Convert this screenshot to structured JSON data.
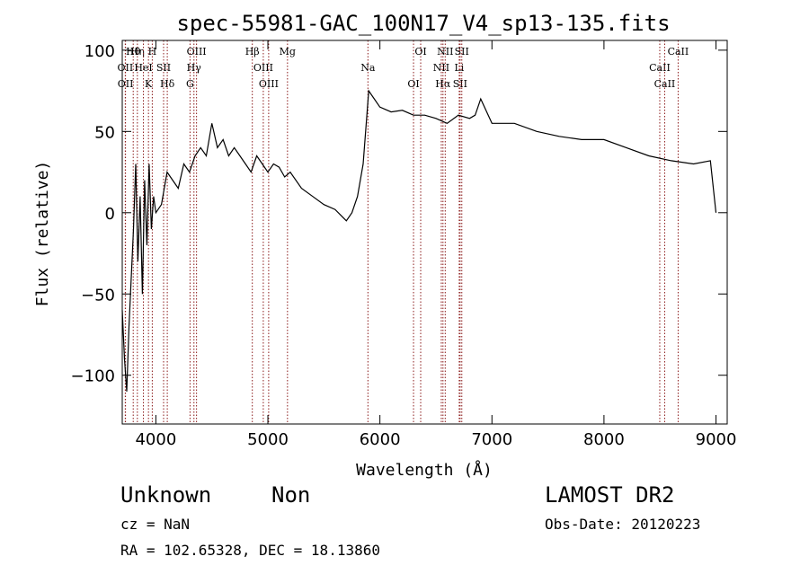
{
  "chart_data": {
    "type": "line",
    "title": "spec-55981-GAC_100N17_V4_sp13-135.fits",
    "xlabel": "Wavelength (Å)",
    "ylabel": "Flux (relative)",
    "xlim": [
      3700,
      9100
    ],
    "ylim": [
      -130,
      106
    ],
    "x_ticks": [
      4000,
      5000,
      6000,
      7000,
      8000,
      9000
    ],
    "y_ticks": [
      -100,
      -50,
      0,
      50,
      100
    ],
    "grid": false,
    "series": [
      {
        "x": [
          3700,
          3720,
          3740,
          3760,
          3780,
          3800,
          3820,
          3840,
          3860,
          3880,
          3900,
          3920,
          3940,
          3960,
          3980,
          4000,
          4050,
          4100,
          4150,
          4200,
          4250,
          4300,
          4350,
          4400,
          4450,
          4500,
          4550,
          4600,
          4650,
          4700,
          4750,
          4800,
          4850,
          4900,
          4950,
          5000,
          5050,
          5100,
          5150,
          5200,
          5300,
          5400,
          5500,
          5600,
          5700,
          5750,
          5800,
          5850,
          5900,
          5950,
          6000,
          6100,
          6200,
          6300,
          6400,
          6500,
          6600,
          6700,
          6800,
          6850,
          6900,
          7000,
          7200,
          7400,
          7600,
          7800,
          8000,
          8200,
          8400,
          8600,
          8800,
          8950,
          9000
        ],
        "y": [
          -60,
          -90,
          -110,
          -70,
          -40,
          -10,
          30,
          -30,
          10,
          -50,
          20,
          -20,
          30,
          -10,
          10,
          0,
          5,
          25,
          20,
          15,
          30,
          25,
          35,
          40,
          35,
          55,
          40,
          45,
          35,
          40,
          35,
          30,
          25,
          35,
          30,
          25,
          30,
          28,
          22,
          25,
          15,
          10,
          5,
          2,
          -5,
          0,
          10,
          30,
          75,
          70,
          65,
          62,
          63,
          60,
          60,
          58,
          55,
          60,
          58,
          60,
          70,
          55,
          55,
          50,
          47,
          45,
          45,
          40,
          35,
          32,
          30,
          32,
          0
        ]
      }
    ],
    "line_markers": [
      {
        "label": "Hθ",
        "x": 3798
      },
      {
        "label": "OII",
        "x": 3727
      },
      {
        "label": "OII",
        "x": 3729
      },
      {
        "label": "Hη",
        "x": 3835
      },
      {
        "label": "HeI",
        "x": 3889
      },
      {
        "label": "K",
        "x": 3934
      },
      {
        "label": "H",
        "x": 3968
      },
      {
        "label": "SII",
        "x": 4069
      },
      {
        "label": "Hδ",
        "x": 4102
      },
      {
        "label": "OIII",
        "x": 4363
      },
      {
        "label": "Hγ",
        "x": 4340
      },
      {
        "label": "G",
        "x": 4305
      },
      {
        "label": "Hβ",
        "x": 4861
      },
      {
        "label": "OIII",
        "x": 4959
      },
      {
        "label": "OIII",
        "x": 5007
      },
      {
        "label": "Mg",
        "x": 5175
      },
      {
        "label": "Na",
        "x": 5893
      },
      {
        "label": "OI",
        "x": 6300
      },
      {
        "label": "OI",
        "x": 6364
      },
      {
        "label": "NII",
        "x": 6548
      },
      {
        "label": "Hα",
        "x": 6563
      },
      {
        "label": "NII",
        "x": 6583
      },
      {
        "label": "Li",
        "x": 6708
      },
      {
        "label": "SII",
        "x": 6716
      },
      {
        "label": "SII",
        "x": 6731
      },
      {
        "label": "CaII",
        "x": 8498
      },
      {
        "label": "CaII",
        "x": 8542
      },
      {
        "label": "CaII",
        "x": 8662
      }
    ]
  },
  "footer": {
    "class_label": "Unknown",
    "subclass_label": "Non",
    "survey_label": "LAMOST DR2",
    "cz_label": "cz = NaN",
    "obs_date_label": "Obs-Date: 20120223",
    "radec_label": "RA = 102.65328, DEC =  18.13860"
  },
  "colors": {
    "line": "#000000",
    "marker": "#8b1a1a"
  }
}
